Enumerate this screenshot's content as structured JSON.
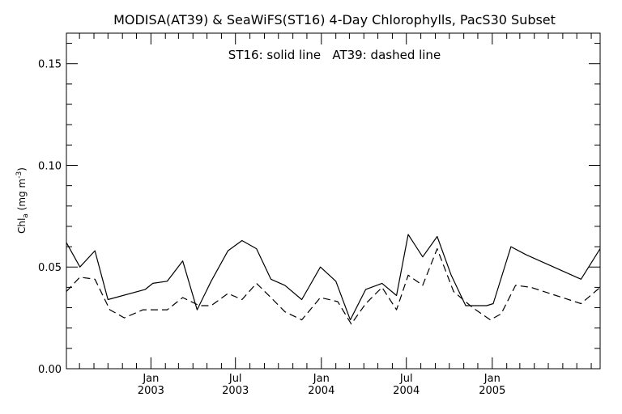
{
  "chart_data": {
    "type": "line",
    "title": "MODISA(AT39) & SeaWiFS(ST16) 4-Day Chlorophylls, PacS30 Subset",
    "annotation": "ST16: solid line   AT39: dashed line",
    "ylabel": "Chl_a (mg m^-3)",
    "ylabel_parts": {
      "base": "Chl",
      "sub": "a",
      "units_open": " (mg m",
      "sup": "-3",
      "units_close": ")"
    },
    "xlabel": "",
    "ylim": [
      0.0,
      0.165
    ],
    "xlim": [
      "2002-07-04",
      "2005-08-20"
    ],
    "y_ticks": [
      0.0,
      0.05,
      0.1,
      0.15
    ],
    "y_tick_labels": [
      "0.00",
      "0.05",
      "0.10",
      "0.15"
    ],
    "x_ticks": [
      {
        "date": "2003-01-01",
        "month": "Jan",
        "year": "2003"
      },
      {
        "date": "2003-07-01",
        "month": "Jul",
        "year": "2003"
      },
      {
        "date": "2004-01-01",
        "month": "Jan",
        "year": "2004"
      },
      {
        "date": "2004-07-01",
        "month": "Jul",
        "year": "2004"
      },
      {
        "date": "2005-01-01",
        "month": "Jan",
        "year": "2005"
      }
    ],
    "x_minor_tick_dates": [
      "2002-08-01",
      "2002-09-01",
      "2002-10-01",
      "2002-11-01",
      "2002-12-01",
      "2003-02-01",
      "2003-03-01",
      "2003-04-01",
      "2003-05-01",
      "2003-06-01",
      "2003-08-01",
      "2003-09-01",
      "2003-10-01",
      "2003-11-01",
      "2003-12-01",
      "2004-02-01",
      "2004-03-01",
      "2004-04-01",
      "2004-05-01",
      "2004-06-01",
      "2004-08-01",
      "2004-09-01",
      "2004-10-01",
      "2004-11-01",
      "2004-12-01",
      "2005-02-01",
      "2005-03-01",
      "2005-04-01",
      "2005-05-01",
      "2005-06-01",
      "2005-07-01",
      "2005-08-01"
    ],
    "y_minor_ticks": [
      0.01,
      0.02,
      0.03,
      0.04,
      0.06,
      0.07,
      0.08,
      0.09,
      0.11,
      0.12,
      0.13,
      0.14,
      0.16
    ],
    "grid": false,
    "series": [
      {
        "name": "ST16",
        "style": "solid",
        "color": "#000000",
        "points": [
          [
            "2002-07-04",
            0.062
          ],
          [
            "2002-08-02",
            0.05
          ],
          [
            "2002-09-03",
            0.058
          ],
          [
            "2002-10-01",
            0.034
          ],
          [
            "2002-12-20",
            0.039
          ],
          [
            "2003-01-05",
            0.042
          ],
          [
            "2003-02-05",
            0.043
          ],
          [
            "2003-03-10",
            0.053
          ],
          [
            "2003-04-10",
            0.029
          ],
          [
            "2003-05-10",
            0.043
          ],
          [
            "2003-06-15",
            0.058
          ],
          [
            "2003-07-15",
            0.063
          ],
          [
            "2003-08-15",
            0.059
          ],
          [
            "2003-09-15",
            0.044
          ],
          [
            "2003-10-15",
            0.041
          ],
          [
            "2003-11-20",
            0.034
          ],
          [
            "2003-12-30",
            0.05
          ],
          [
            "2004-02-01",
            0.043
          ],
          [
            "2004-03-03",
            0.024
          ],
          [
            "2004-04-05",
            0.039
          ],
          [
            "2004-05-10",
            0.042
          ],
          [
            "2004-06-10",
            0.036
          ],
          [
            "2004-07-05",
            0.066
          ],
          [
            "2004-08-05",
            0.055
          ],
          [
            "2004-09-05",
            0.065
          ],
          [
            "2004-10-05",
            0.046
          ],
          [
            "2004-11-05",
            0.031
          ],
          [
            "2004-12-20",
            0.031
          ],
          [
            "2005-01-03",
            0.032
          ],
          [
            "2005-02-10",
            0.06
          ],
          [
            "2005-03-15",
            0.056
          ],
          [
            "2005-07-10",
            0.044
          ],
          [
            "2005-08-20",
            0.059
          ]
        ]
      },
      {
        "name": "AT39",
        "style": "dashed",
        "color": "#000000",
        "points": [
          [
            "2002-07-04",
            0.038
          ],
          [
            "2002-08-02",
            0.045
          ],
          [
            "2002-09-03",
            0.044
          ],
          [
            "2002-10-05",
            0.029
          ],
          [
            "2002-11-05",
            0.025
          ],
          [
            "2002-12-15",
            0.029
          ],
          [
            "2003-01-15",
            0.029
          ],
          [
            "2003-02-05",
            0.029
          ],
          [
            "2003-03-10",
            0.035
          ],
          [
            "2003-04-15",
            0.031
          ],
          [
            "2003-05-10",
            0.031
          ],
          [
            "2003-06-15",
            0.037
          ],
          [
            "2003-07-15",
            0.034
          ],
          [
            "2003-08-15",
            0.042
          ],
          [
            "2003-09-15",
            0.035
          ],
          [
            "2003-10-15",
            0.028
          ],
          [
            "2003-11-20",
            0.024
          ],
          [
            "2003-12-30",
            0.035
          ],
          [
            "2004-02-05",
            0.033
          ],
          [
            "2004-03-05",
            0.022
          ],
          [
            "2004-04-05",
            0.032
          ],
          [
            "2004-05-10",
            0.04
          ],
          [
            "2004-06-10",
            0.029
          ],
          [
            "2004-07-05",
            0.046
          ],
          [
            "2004-08-05",
            0.041
          ],
          [
            "2004-09-05",
            0.059
          ],
          [
            "2004-10-10",
            0.038
          ],
          [
            "2004-11-20",
            0.03
          ],
          [
            "2004-12-28",
            0.024
          ],
          [
            "2005-01-20",
            0.027
          ],
          [
            "2005-02-20",
            0.041
          ],
          [
            "2005-03-25",
            0.04
          ],
          [
            "2005-07-10",
            0.032
          ],
          [
            "2005-08-20",
            0.04
          ]
        ]
      }
    ]
  }
}
